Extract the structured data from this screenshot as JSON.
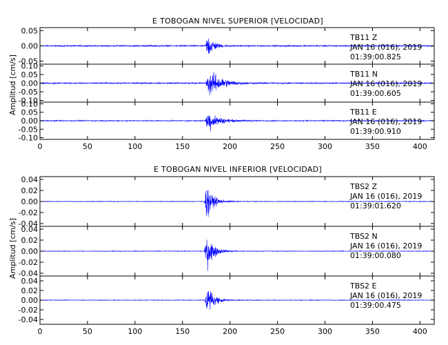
{
  "chart_data": [
    {
      "type": "line",
      "title": "E TOBOGAN NIVEL SUPERIOR [VELOCIDAD]",
      "ylabel": "Amplitud [cm/s]",
      "xlabel": "",
      "xlim": [
        0,
        415
      ],
      "x_ticks": [
        "0",
        "50",
        "100",
        "150",
        "200",
        "250",
        "300",
        "350",
        "400"
      ],
      "series_color": "#0000ff",
      "panels": [
        {
          "name": "TB11 Z",
          "station": "TB11",
          "component": "Z",
          "date": "JAN 16 (016), 2019",
          "time": "01:39:00.825",
          "ylim": [
            -0.06,
            0.06
          ],
          "y_ticks": [
            "-0.05",
            "0.00",
            "0.05"
          ],
          "onset": 174,
          "peak_time": 176.5,
          "peak_amp": 0.058,
          "noise": 0.003,
          "decay_s": 6
        },
        {
          "name": "TB11 N",
          "station": "TB11",
          "component": "N",
          "date": "JAN 16 (016), 2019",
          "time": "01:39:00.605",
          "ylim": [
            -0.11,
            0.11
          ],
          "y_ticks": [
            "-0.10",
            "-0.05",
            "0.00",
            "0.05",
            "0.10"
          ],
          "onset": 174,
          "peak_time": 179,
          "peak_amp": 0.1,
          "noise": 0.005,
          "decay_s": 13
        },
        {
          "name": "TB11 E",
          "station": "TB11",
          "component": "E",
          "date": "JAN 16 (016), 2019",
          "time": "01:39:00.910",
          "ylim": [
            -0.11,
            0.11
          ],
          "y_ticks": [
            "-0.10",
            "-0.05",
            "0.00",
            "0.05",
            "0.10"
          ],
          "onset": 174,
          "peak_time": 177,
          "peak_amp": 0.09,
          "noise": 0.004,
          "decay_s": 10
        }
      ]
    },
    {
      "type": "line",
      "title": "E TOBOGAN NIVEL INFERIOR [VELOCIDAD]",
      "ylabel": "Amplitud [cm/s]",
      "xlabel": "",
      "xlim": [
        0,
        415
      ],
      "x_ticks": [
        "0",
        "50",
        "100",
        "150",
        "200",
        "250",
        "300",
        "350",
        "400"
      ],
      "series_color": "#0000ff",
      "panels": [
        {
          "name": "TBS2 Z",
          "station": "TBS2",
          "component": "Z",
          "date": "JAN 16 (016), 2019",
          "time": "01:39:01.620",
          "ylim": [
            -0.045,
            0.045
          ],
          "y_ticks": [
            "-0.04",
            "-0.02",
            "0.00",
            "0.02",
            "0.04"
          ],
          "onset": 173,
          "peak_time": 175,
          "peak_amp": 0.042,
          "noise": 0.0008,
          "decay_s": 7
        },
        {
          "name": "TBS2 N",
          "station": "TBS2",
          "component": "N",
          "date": "JAN 16 (016), 2019",
          "time": "01:39:00.080",
          "ylim": [
            -0.045,
            0.045
          ],
          "y_ticks": [
            "-0.04",
            "-0.02",
            "0.00",
            "0.02",
            "0.04"
          ],
          "onset": 173,
          "peak_time": 176,
          "peak_amp": 0.042,
          "noise": 0.0008,
          "decay_s": 7
        },
        {
          "name": "TBS2 E",
          "station": "TBS2",
          "component": "E",
          "date": "JAN 16 (016), 2019",
          "time": "01:39:00.475",
          "ylim": [
            -0.05,
            0.05
          ],
          "y_ticks": [
            "-0.04",
            "-0.02",
            "0.00",
            "0.02",
            "0.04"
          ],
          "onset": 173,
          "peak_time": 176,
          "peak_amp": 0.045,
          "noise": 0.0009,
          "decay_s": 7
        }
      ]
    }
  ]
}
